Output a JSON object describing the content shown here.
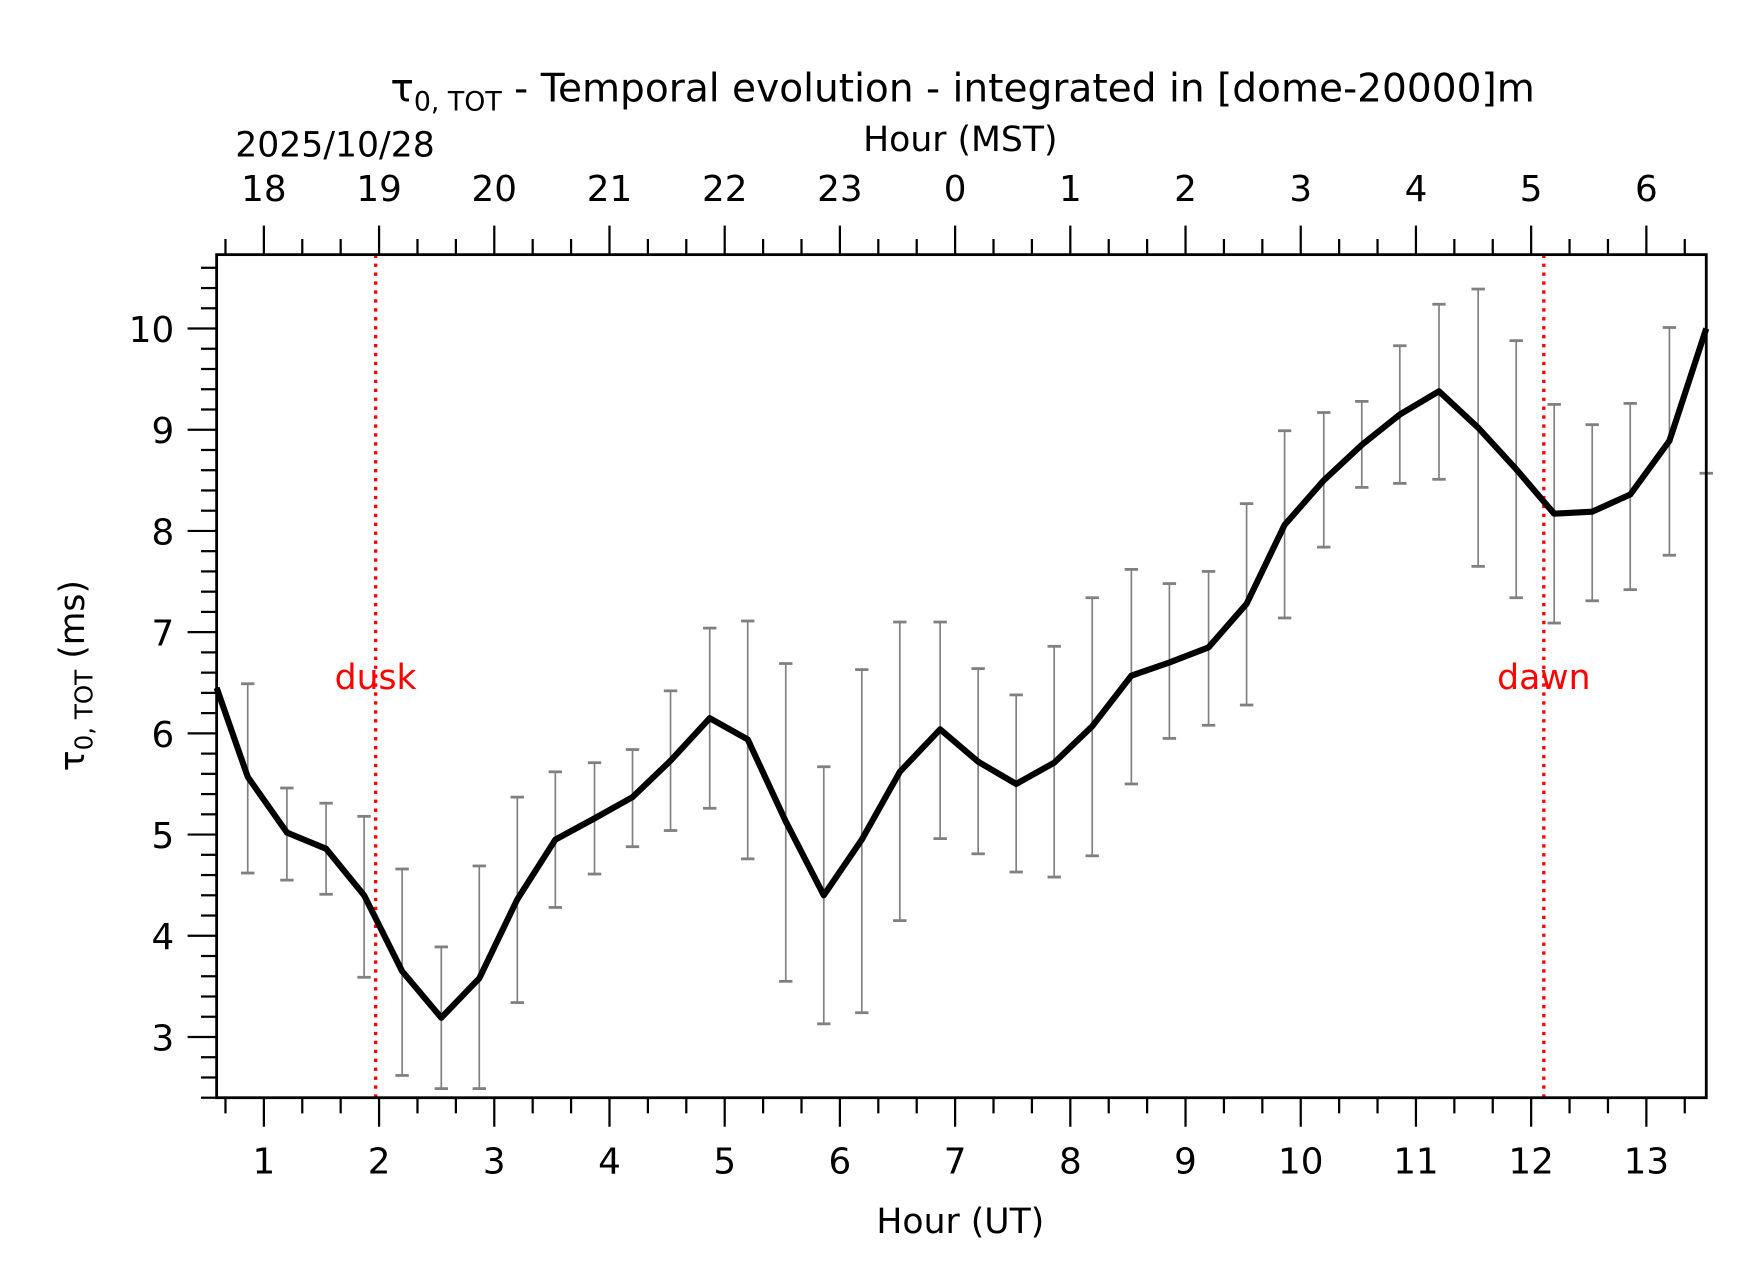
{
  "chart_data": {
    "type": "line",
    "title": {
      "symbol": "τ",
      "subscript": "0, TOT",
      "rest": " - Temporal evolution - integrated in [dome-20000]m"
    },
    "date_label": "2025/10/28",
    "xlabel": "Hour (UT)",
    "xlabel_top": "Hour (MST)",
    "ylabel": {
      "symbol": "τ",
      "subscript": "0, TOT",
      "rest": " (ms)"
    },
    "xlim": [
      0.59,
      13.52
    ],
    "ylim": [
      2.4,
      10.73
    ],
    "x_ticks": [
      1,
      2,
      3,
      4,
      5,
      6,
      7,
      8,
      9,
      10,
      11,
      12,
      13
    ],
    "x_tick_labels": [
      "1",
      "2",
      "3",
      "4",
      "5",
      "6",
      "7",
      "8",
      "9",
      "10",
      "11",
      "12",
      "13"
    ],
    "x_top_tick_labels": [
      "18",
      "19",
      "20",
      "21",
      "22",
      "23",
      "0",
      "1",
      "2",
      "3",
      "4",
      "5",
      "6"
    ],
    "y_ticks": [
      3,
      4,
      5,
      6,
      7,
      8,
      9,
      10
    ],
    "y_tick_labels": [
      "3",
      "4",
      "5",
      "6",
      "7",
      "8",
      "9",
      "10"
    ],
    "grid": false,
    "series": [
      {
        "color": "#000000",
        "errorbar_color": "#808080",
        "x": [
          0.59,
          0.86,
          1.2,
          1.54,
          1.87,
          2.2,
          2.54,
          2.87,
          3.2,
          3.53,
          3.87,
          4.2,
          4.53,
          4.87,
          5.2,
          5.53,
          5.86,
          6.19,
          6.52,
          6.87,
          7.2,
          7.53,
          7.86,
          8.19,
          8.53,
          8.86,
          9.2,
          9.53,
          9.86,
          10.2,
          10.53,
          10.86,
          11.2,
          11.54,
          11.87,
          12.2,
          12.53,
          12.86,
          13.2,
          13.52
        ],
        "y": [
          6.45,
          5.57,
          5.02,
          4.86,
          4.4,
          3.65,
          3.19,
          3.58,
          4.36,
          4.95,
          5.16,
          5.37,
          5.73,
          6.15,
          5.94,
          5.13,
          4.4,
          4.95,
          5.62,
          6.04,
          5.72,
          5.5,
          5.71,
          6.07,
          6.57,
          6.7,
          6.85,
          7.28,
          8.06,
          8.5,
          8.85,
          9.15,
          9.38,
          9.02,
          8.61,
          8.17,
          8.19,
          8.36,
          8.89,
          10.0
        ],
        "err_high": [
          null,
          6.49,
          5.46,
          5.31,
          5.18,
          4.66,
          3.89,
          4.69,
          5.37,
          5.62,
          5.71,
          5.84,
          6.42,
          7.04,
          7.11,
          6.69,
          5.67,
          6.63,
          7.1,
          7.1,
          6.64,
          6.38,
          6.86,
          7.34,
          7.62,
          7.48,
          7.6,
          8.27,
          8.99,
          9.17,
          9.28,
          9.83,
          10.24,
          10.39,
          9.88,
          9.25,
          9.05,
          9.26,
          10.01,
          null
        ],
        "err_low": [
          null,
          4.62,
          4.55,
          4.41,
          3.59,
          2.62,
          2.49,
          2.49,
          3.34,
          4.28,
          4.61,
          4.88,
          5.04,
          5.26,
          4.76,
          3.55,
          3.13,
          3.24,
          4.15,
          4.96,
          4.81,
          4.63,
          4.58,
          4.79,
          5.5,
          5.95,
          6.08,
          6.28,
          7.14,
          7.84,
          8.43,
          8.47,
          8.51,
          7.65,
          7.34,
          7.09,
          7.31,
          7.42,
          7.76,
          8.57
        ]
      }
    ],
    "annotations": [
      {
        "label": "dusk",
        "x": 1.97,
        "color": "#ff0000"
      },
      {
        "label": "dawn",
        "x": 12.11,
        "color": "#ff0000"
      }
    ]
  }
}
